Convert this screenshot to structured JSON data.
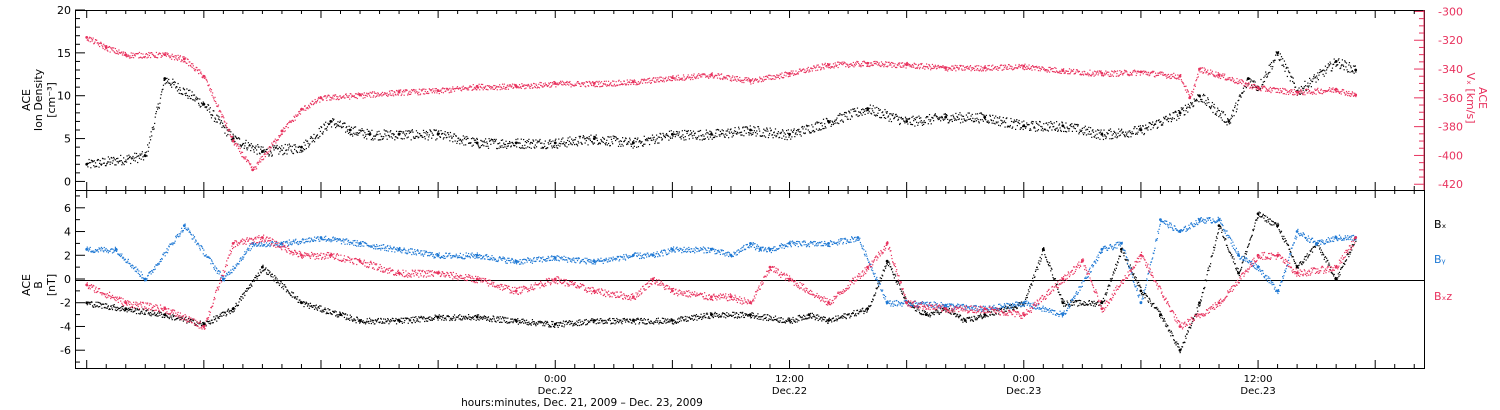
{
  "chart_data": [
    {
      "type": "scatter",
      "panel": "top",
      "left_axis_title": [
        "ACE",
        "Ion Density",
        "[cm⁻³]"
      ],
      "right_axis_title": [
        "ACE",
        "Vₓ [km/s]"
      ],
      "ylim": [
        -1,
        20
      ],
      "ylim_right": [
        -424,
        -299
      ],
      "yticks": [
        "0",
        "5",
        "10",
        "15",
        "20"
      ],
      "yticks_right": [
        "-420",
        "-400",
        "-380",
        "-360",
        "-340",
        "-320",
        "-300"
      ],
      "grid": false,
      "series": [
        {
          "color": "#000000",
          "axis": "left",
          "x": [
            -24,
            -21,
            -20,
            -18,
            -16.5,
            -15,
            -13,
            -11.5,
            -10.5,
            -9.5,
            -8,
            -6,
            -4,
            -2,
            0,
            2,
            4,
            6,
            8,
            10,
            12,
            14,
            16,
            18,
            20,
            22,
            24,
            26,
            28,
            30,
            32,
            33,
            34.5,
            35.5,
            36,
            37,
            38,
            40,
            41
          ],
          "y": [
            2,
            3,
            12,
            9,
            5,
            3.5,
            4,
            7,
            6,
            5.5,
            5.5,
            5.5,
            4.5,
            4.5,
            4.5,
            5,
            4.5,
            5.5,
            5.5,
            6,
            5.5,
            7,
            8.5,
            7,
            7.5,
            7.5,
            6.5,
            6.5,
            5.5,
            6,
            8,
            10,
            7,
            12,
            11,
            15,
            10.5,
            14,
            13
          ]
        },
        {
          "color": "#e8325e",
          "axis": "right",
          "x": [
            -24,
            -23,
            -22,
            -20,
            -19,
            -18,
            -16.5,
            -15.5,
            -14,
            -13,
            -12,
            -10,
            -8,
            -6,
            -4,
            -2,
            0,
            2,
            4,
            6,
            8,
            10,
            12,
            14,
            16,
            18,
            20,
            22,
            24,
            26,
            28,
            30,
            32,
            32.5,
            33,
            34,
            36,
            38,
            40,
            41
          ],
          "y": [
            -318,
            -325,
            -330,
            -330,
            -333,
            -345,
            -390,
            -410,
            -383,
            -368,
            -360,
            -358,
            -356,
            -355,
            -352,
            -352,
            -350,
            -350,
            -349,
            -346,
            -344,
            -348,
            -343,
            -337,
            -336,
            -337,
            -339,
            -339,
            -338,
            -341,
            -343,
            -342,
            -345,
            -360,
            -340,
            -344,
            -353,
            -356,
            -354,
            -358
          ]
        }
      ]
    },
    {
      "type": "scatter",
      "panel": "bottom",
      "left_axis_title": [
        "ACE",
        "B",
        "[nT]"
      ],
      "ylim": [
        -7.5,
        7.5
      ],
      "yticks": [
        "-6",
        "-4",
        "-2",
        "0",
        "2",
        "4",
        "6"
      ],
      "xlim": [
        -24.6,
        44.5
      ],
      "x_ticks": [
        0,
        12,
        24,
        36
      ],
      "x_tick_labels": [
        "0:00",
        "12:00",
        "0:00",
        "12:00"
      ],
      "x_tick_sublabels": [
        "Dec.22",
        "Dec.22",
        "Dec.23",
        "Dec.23"
      ],
      "xlabel": "hours:minutes, Dec. 21, 2009 – Dec. 23, 2009",
      "grid": false,
      "legend_position": "right",
      "legend": [
        "Bₓ",
        "Bᵧ",
        "Bₓz"
      ],
      "series": [
        {
          "name": "Bₓ",
          "color": "#000000",
          "x": [
            -24,
            -22,
            -20,
            -18,
            -16.5,
            -15,
            -13,
            -11,
            -10,
            -8,
            -6,
            -4,
            -2,
            0,
            2,
            4,
            6,
            8,
            10,
            12,
            13,
            14,
            16,
            17,
            18,
            19,
            20,
            21,
            22,
            24,
            25,
            26,
            28,
            29,
            30,
            31,
            32,
            33,
            34,
            35,
            36,
            37,
            38,
            39,
            40,
            41
          ],
          "y": [
            -2,
            -2.5,
            -3,
            -3.8,
            -2.5,
            1,
            -2,
            -3,
            -3.5,
            -3.5,
            -3.2,
            -3.2,
            -3.5,
            -3.8,
            -3.5,
            -3.5,
            -3.5,
            -3,
            -3,
            -3.5,
            -3,
            -3.5,
            -2.5,
            1.5,
            -2,
            -3,
            -2.5,
            -3.5,
            -3,
            -2,
            2.5,
            -2,
            -2,
            2.5,
            -1,
            -3,
            -6,
            -2,
            4.5,
            0.5,
            5.5,
            4.5,
            1,
            3,
            0,
            3.5
          ]
        },
        {
          "name": "Bᵧ",
          "color": "#1e78d4",
          "x": [
            -24,
            -22.5,
            -21,
            -19,
            -17,
            -15.5,
            -14,
            -12,
            -10,
            -8,
            -6,
            -4,
            -2,
            0,
            2,
            4,
            5,
            6,
            8,
            9,
            10,
            10.5,
            11,
            12,
            14,
            15.5,
            17,
            18,
            20,
            22,
            24,
            26,
            28,
            29,
            30,
            31,
            32,
            33,
            34,
            35,
            36,
            37,
            38,
            39,
            40,
            41
          ],
          "y": [
            2.5,
            2.5,
            0,
            4.5,
            0,
            3,
            3,
            3.5,
            3,
            2.5,
            2,
            2,
            1.5,
            1.8,
            1.5,
            2,
            2,
            2.5,
            2.5,
            2,
            3,
            2.5,
            2.5,
            3,
            3,
            3.5,
            -2,
            -2,
            -2.2,
            -2.5,
            -2,
            -3,
            2.5,
            3,
            -2,
            5,
            4,
            5,
            5,
            2,
            1,
            -1,
            4,
            3,
            3.5,
            3.5
          ]
        },
        {
          "name": "Bₓz",
          "color": "#e8325e",
          "x": [
            -24,
            -22,
            -20,
            -18,
            -16.5,
            -15,
            -13,
            -11.5,
            -10,
            -8,
            -6,
            -4,
            -2,
            0,
            2,
            4,
            5,
            6,
            8,
            9,
            10,
            11,
            12,
            14,
            16,
            17,
            18,
            20,
            22,
            24,
            26,
            27,
            28,
            30,
            32,
            34,
            36,
            37,
            38,
            40,
            41
          ],
          "y": [
            -0.5,
            -2,
            -2.5,
            -4,
            3,
            3.5,
            2,
            2,
            1.5,
            0.5,
            0.5,
            0,
            -1,
            0,
            -1,
            -1.5,
            0,
            -1,
            -1.5,
            -1.5,
            -2,
            1,
            0,
            -2,
            1,
            3,
            -2,
            -2.5,
            -2.5,
            -3,
            0,
            1.5,
            -2.5,
            2,
            -4,
            -2,
            2,
            2,
            0.5,
            1,
            3.5
          ]
        }
      ]
    }
  ]
}
